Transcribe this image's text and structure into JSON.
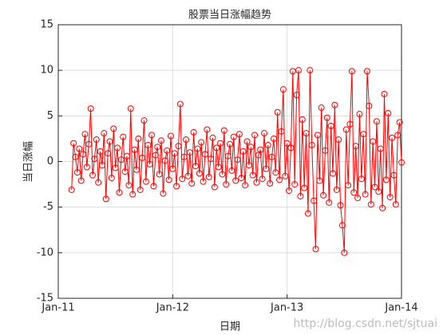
{
  "chart_data": {
    "type": "line",
    "title": "股票当日涨幅趋势",
    "x_label": "日期",
    "y_label": "当日涨幅",
    "annotation": "http://blog.csdn.net/sjtuai",
    "x": [
      1.4,
      1.6,
      1.8,
      2,
      2.2,
      2.4,
      2.6,
      2.8,
      3,
      3.2,
      3.4,
      3.6,
      3.8,
      4,
      4.2,
      4.4,
      4.6,
      4.8,
      5,
      5.2,
      5.4,
      5.6,
      5.8,
      6,
      6.2,
      6.4,
      6.6,
      6.8,
      7,
      7.2,
      7.4,
      7.6,
      7.8,
      8,
      8.2,
      8.4,
      8.6,
      8.8,
      9,
      9.2,
      9.4,
      9.6,
      9.8,
      10,
      10.2,
      10.4,
      10.6,
      10.8,
      11,
      11.2,
      11.4,
      11.6,
      11.8,
      12,
      12.2,
      12.4,
      12.6,
      12.8,
      13,
      13.2,
      13.4,
      13.6,
      13.8,
      14,
      14.2,
      14.4,
      14.6,
      14.8,
      15,
      15.2,
      15.4,
      15.6,
      15.8,
      16,
      16.2,
      16.4,
      16.6,
      16.8,
      17,
      17.2,
      17.4,
      17.6,
      17.8,
      18,
      18.2,
      18.4,
      18.6,
      18.8,
      19,
      19.2,
      19.4,
      19.6,
      19.8,
      20,
      20.2,
      20.4,
      20.6,
      20.8,
      21,
      21.2,
      21.4,
      21.6,
      21.8,
      22,
      22.2,
      22.4,
      22.6,
      22.8,
      23,
      23.2,
      23.4,
      23.6,
      23.8,
      24,
      24.2,
      24.4,
      24.6,
      24.8,
      25,
      25.2,
      25.4,
      25.6,
      25.8,
      26,
      26.2,
      26.4,
      26.6,
      26.8,
      27,
      27.2,
      27.4,
      27.6,
      27.8,
      28,
      28.2,
      28.4,
      28.6,
      28.8,
      29,
      29.2,
      29.4,
      29.6,
      29.8,
      30,
      30.2,
      30.4,
      30.6,
      30.8,
      31,
      31.2,
      31.4,
      31.6,
      31.8,
      32,
      32.2,
      32.4,
      32.6,
      32.8,
      33,
      33.2,
      33.4,
      33.6,
      33.8,
      34,
      34.2,
      34.4,
      34.6,
      34.8,
      35,
      35.2,
      35.4,
      35.6,
      35.8,
      36
    ],
    "series": [
      {
        "color": "#ff0000",
        "values": [
          -3.1,
          2.0,
          0.5,
          -1.2,
          1.4,
          -2.1,
          0.8,
          3.0,
          -0.6,
          1.9,
          5.8,
          -1.5,
          0.3,
          2.4,
          -2.3,
          1.1,
          -0.4,
          3.1,
          -4.1,
          0.9,
          2.2,
          -1.8,
          3.6,
          -0.7,
          1.5,
          -3.4,
          0.2,
          2.7,
          -1.1,
          0.6,
          -2.6,
          5.8,
          -3.6,
          1.3,
          -0.9,
          2.5,
          -3.1,
          0.4,
          4.5,
          -2.2,
          1.8,
          -0.3,
          2.9,
          -2.7,
          0.7,
          1.6,
          -1.4,
          2.3,
          -3.5,
          0.1,
          1.2,
          -2.0,
          2.8,
          -0.8,
          0.9,
          -2.7,
          1.7,
          6.3,
          -1.9,
          0.5,
          2.4,
          -1.6,
          1.0,
          -2.4,
          3.2,
          -0.5,
          1.4,
          -1.3,
          2.1,
          -2.2,
          0.8,
          3.5,
          -1.7,
          0.3,
          2.6,
          -2.8,
          1.5,
          -0.6,
          2.0,
          -1.4,
          3.4,
          -2.5,
          0.6,
          1.9,
          -1.0,
          2.7,
          -2.1,
          0.2,
          3.0,
          -1.8,
          1.1,
          -2.6,
          2.2,
          -0.4,
          1.6,
          -1.5,
          2.9,
          -2.3,
          0.7,
          1.3,
          -1.9,
          3.1,
          -0.8,
          1.8,
          -2.4,
          0.5,
          2.5,
          -1.2,
          5.4,
          -2.0,
          3.3,
          7.9,
          -1.6,
          2.0,
          -3.2,
          1.5,
          9.9,
          -2.5,
          7.3,
          10.0,
          -3.8,
          4.6,
          -2.9,
          3.1,
          -5.7,
          10.0,
          1.8,
          -4.3,
          -9.6,
          2.9,
          -2.1,
          5.9,
          -3.7,
          1.2,
          4.8,
          -4.5,
          3.9,
          -1.3,
          6.2,
          -3.1,
          2.4,
          -4.8,
          -7.0,
          -10.0,
          3.5,
          -2.6,
          4.1,
          9.9,
          -3.4,
          1.7,
          -4.0,
          5.2,
          -1.9,
          3.0,
          -3.6,
          9.9,
          6.1,
          -4.7,
          2.2,
          -2.8,
          4.4,
          -3.3,
          1.4,
          -5.1,
          7.4,
          -2.0,
          5.3,
          -3.9,
          2.6,
          -1.5,
          -4.7,
          2.9,
          4.3,
          -0.1
        ]
      }
    ],
    "xlim": [
      0,
      36
    ],
    "xticks": [
      {
        "value": 0,
        "label": "Jan-11"
      },
      {
        "value": 12,
        "label": "Jan-12"
      },
      {
        "value": 24,
        "label": "Jan-13"
      },
      {
        "value": 36,
        "label": "Jan-14"
      }
    ],
    "ylim": [
      -15,
      15
    ],
    "yticks": [
      -15,
      -10,
      -5,
      0,
      5,
      10,
      15
    ],
    "grid": true
  }
}
